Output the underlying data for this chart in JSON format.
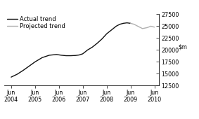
{
  "title": "",
  "ylim": [
    12500,
    27500
  ],
  "yticks": [
    12500,
    15000,
    17500,
    20000,
    22500,
    25000,
    27500
  ],
  "xtick_labels": [
    "Jun\n2004",
    "Jun\n2005",
    "Jun\n2006",
    "Jun\n2007",
    "Jun\n2008",
    "Jun\n2009",
    "Jun\n2010"
  ],
  "xtick_positions": [
    0,
    1,
    2,
    3,
    4,
    5,
    6
  ],
  "actual_x": [
    0,
    0.25,
    0.5,
    0.75,
    1.0,
    1.3,
    1.6,
    1.9,
    2.1,
    2.3,
    2.5,
    2.7,
    2.85,
    3.0,
    3.2,
    3.4,
    3.6,
    3.8,
    4.0,
    4.2,
    4.4,
    4.55,
    4.7,
    4.85,
    5.0
  ],
  "actual_y": [
    14300,
    14900,
    15700,
    16600,
    17500,
    18400,
    18900,
    19050,
    18900,
    18800,
    18800,
    18850,
    18950,
    19200,
    20000,
    20600,
    21400,
    22300,
    23400,
    24200,
    25000,
    25400,
    25600,
    25700,
    25600
  ],
  "projected_x": [
    5.0,
    5.15,
    5.3,
    5.5,
    5.7,
    5.85,
    6.0
  ],
  "projected_y": [
    25600,
    25400,
    25000,
    24500,
    24700,
    25000,
    24800
  ],
  "actual_color": "#111111",
  "projected_color": "#b0b0b0",
  "background_color": "#ffffff",
  "legend_actual": "Actual trend",
  "legend_projected": "Projected trend",
  "font_size": 5.8,
  "legend_fontsize": 6.0
}
